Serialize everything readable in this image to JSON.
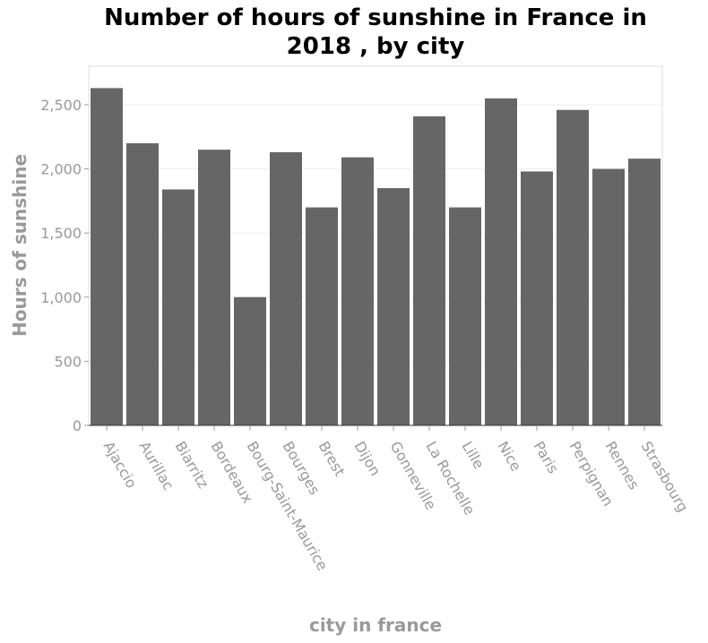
{
  "chart_data": {
    "type": "bar",
    "title_lines": [
      "Number of hours of sunshine in France in",
      "2018 , by city"
    ],
    "xlabel": "city in france",
    "ylabel": "Hours of sunshine",
    "categories": [
      "Ajaccio",
      "Aurillac",
      "Biarritz",
      "Bordeaux",
      "Bourg-Saint-Maurice",
      "Bourges",
      "Brest",
      "Dijon",
      "Gonneville",
      "La Rochelle",
      "Lille",
      "Nice",
      "Paris",
      "Perpignan",
      "Rennes",
      "Strasbourg"
    ],
    "values": [
      2630,
      2200,
      1840,
      2150,
      1000,
      2130,
      1700,
      2090,
      1850,
      2410,
      1700,
      2550,
      1980,
      2460,
      2000,
      2080
    ],
    "ylim": [
      0,
      2800
    ],
    "yticks": [
      0,
      500,
      1000,
      1500,
      2000,
      2500
    ],
    "ytick_labels": [
      "0",
      "500",
      "1,000",
      "1,500",
      "2,000",
      "2,500"
    ],
    "bar_color": "#666666",
    "grid": true,
    "legend": "none"
  }
}
